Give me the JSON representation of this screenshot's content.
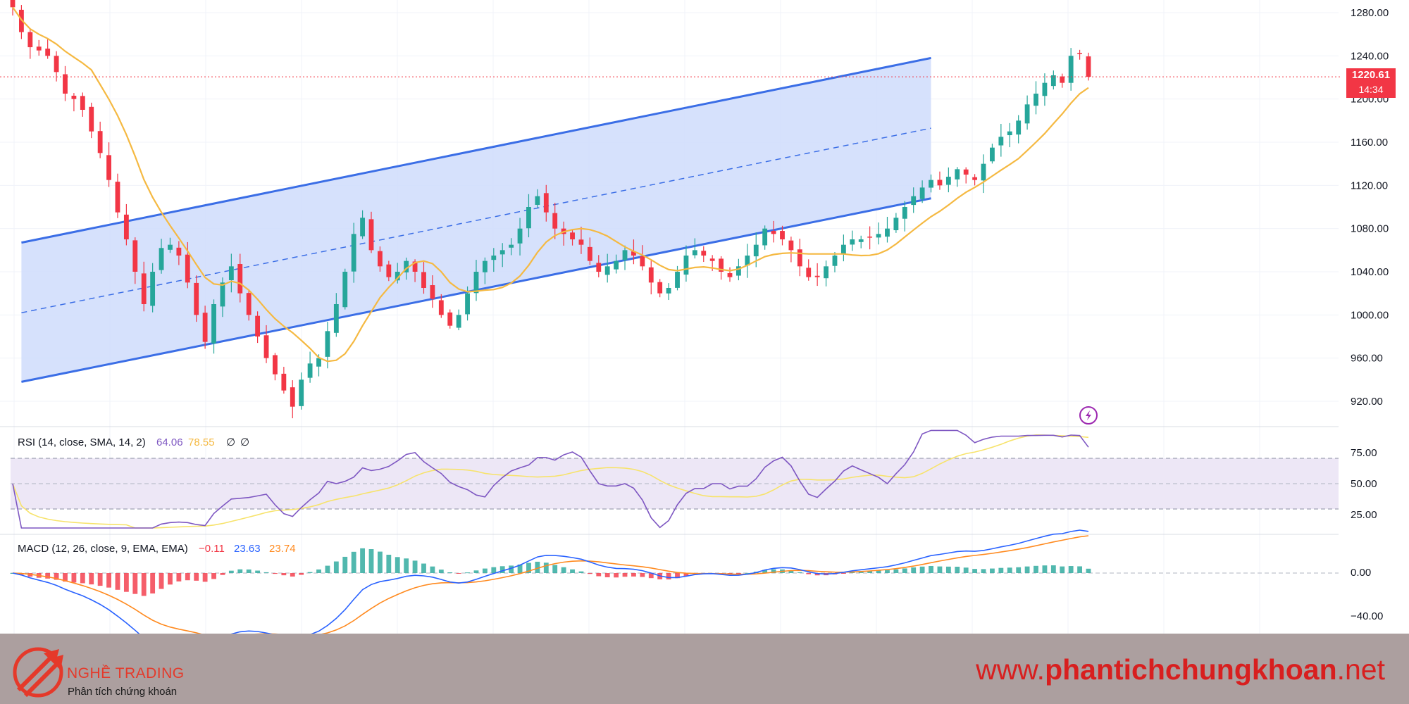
{
  "colors": {
    "up": "#26a69a",
    "down": "#f23645",
    "channel_line": "#3b6ee6",
    "channel_fill": "#cfdcfb",
    "ma": "#f5b942",
    "rsi": "#7e57c2",
    "rsi_ma": "#f7e36b",
    "macd": "#2962ff",
    "signal": "#ff8a1f",
    "footer_bg": "#ac9f9f",
    "brand": "#e5392a"
  },
  "price_axis": {
    "labels": [
      "1280.00",
      "1240.00",
      "1200.00",
      "1160.00",
      "1120.00",
      "1080.00",
      "1040.00",
      "1000.00",
      "960.00",
      "920.00"
    ]
  },
  "price_badge": {
    "price": "1220.61",
    "countdown": "14:34"
  },
  "rsi": {
    "legend": {
      "name": "RSI (14, close, SMA, 14, 2)",
      "value1": "64.06",
      "value2": "78.55",
      "value3": "∅",
      "value4": "∅"
    },
    "axis_labels": [
      "75.00",
      "50.00",
      "25.00"
    ]
  },
  "macd": {
    "legend": {
      "name": "MACD (12, 26, close, 9, EMA, EMA)",
      "hist": "−0.11",
      "macd": "23.63",
      "signal": "23.74"
    },
    "axis_labels": [
      "0.00",
      "−40.00"
    ]
  },
  "footer": {
    "brand_name": "NGHỀ TRADING",
    "brand_tagline": "Phân tích chứng khoán",
    "url_prefix": "www.",
    "url_main": "phantichchungkhoan",
    "url_suffix": ".net",
    "logo_icon": "arrows-logo-icon"
  },
  "chart_data": {
    "type": "candlestick",
    "ylim": [
      890,
      1290
    ],
    "grid": true,
    "close_series_approx": [
      1285,
      1262,
      1248,
      1245,
      1240,
      1225,
      1205,
      1200,
      1190,
      1170,
      1150,
      1125,
      1095,
      1070,
      1040,
      1010,
      1040,
      1062,
      1065,
      1055,
      1030,
      1000,
      975,
      1010,
      1030,
      1045,
      1020,
      1000,
      980,
      960,
      945,
      930,
      915,
      940,
      955,
      960,
      985,
      1010,
      1040,
      1075,
      1090,
      1060,
      1045,
      1035,
      1040,
      1050,
      1040,
      1025,
      1015,
      1000,
      990,
      1000,
      1020,
      1040,
      1050,
      1055,
      1060,
      1065,
      1080,
      1100,
      1110,
      1095,
      1080,
      1075,
      1070,
      1065,
      1050,
      1040,
      1045,
      1050,
      1060,
      1055,
      1045,
      1030,
      1020,
      1025,
      1040,
      1055,
      1060,
      1055,
      1050,
      1040,
      1035,
      1045,
      1055,
      1065,
      1080,
      1075,
      1070,
      1060,
      1045,
      1035,
      1035,
      1045,
      1055,
      1065,
      1070,
      1070,
      1072,
      1075,
      1080,
      1090,
      1100,
      1110,
      1118,
      1125,
      1120,
      1128,
      1135,
      1130,
      1125,
      1140,
      1155,
      1165,
      1170,
      1180,
      1195,
      1205,
      1215,
      1222,
      1215,
      1240,
      1242,
      1220.61
    ],
    "channel": {
      "upper": [
        [
          1,
          1067
        ],
        [
          105,
          1238
        ]
      ],
      "middle": [
        [
          1,
          1002
        ],
        [
          105,
          1173
        ]
      ],
      "lower": [
        [
          1,
          938
        ],
        [
          105,
          1108
        ]
      ]
    },
    "rsi": {
      "overbought": 70,
      "middle": 50,
      "oversold": 30,
      "last": 64.06,
      "ma_last": 78.55
    },
    "macd": {
      "last_hist": -0.11,
      "last_macd": 23.63,
      "last_signal": 23.74
    }
  }
}
